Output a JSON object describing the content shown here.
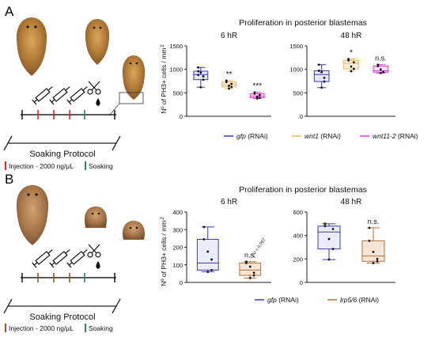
{
  "panels": [
    {
      "id": "A",
      "letter": "A",
      "title": "Proliferation in posterior blastemas",
      "ylabel": "Nº of PH3+ cells / mm",
      "ylabel_sup": "2",
      "protocol": {
        "label": "Soaking Protocol",
        "legend_injection": "Injection - 2000 ng/µL",
        "legend_soaking": "Soaking",
        "tick_colors": [
          "#222222",
          "#e8242c",
          "#e8242c",
          "#e8242c",
          "#2e8b57",
          "#222222"
        ]
      },
      "legend": [
        {
          "name_italic": "gfp",
          "suffix": " (RNAi)",
          "color": "#3a3ab8"
        },
        {
          "name_italic": "wnt1",
          "suffix": " (RNAi)",
          "color": "#f2b36b"
        },
        {
          "name_italic": "wnt11-2",
          "suffix": " (RNAi)",
          "color": "#e23ad6"
        }
      ],
      "chart_data": [
        {
          "type": "box",
          "title": "6 hR",
          "ylim": [
            0,
            1500
          ],
          "yticks": [
            "0",
            "500",
            "1000",
            "1500"
          ],
          "yticks_values": [
            0,
            500,
            1000,
            1500
          ],
          "groups": [
            {
              "color": "#3a3ab8",
              "fill": "#e7e7f7",
              "min": 620,
              "q1": 780,
              "median": 890,
              "q3": 960,
              "max": 1040,
              "points": [
                930,
                850,
                880
              ],
              "annotation": ""
            },
            {
              "color": "#f2b36b",
              "fill": "#fdf0de",
              "min": 590,
              "q1": 625,
              "median": 670,
              "q3": 730,
              "max": 760,
              "points": [
                650,
                690
              ],
              "annotation": "**"
            },
            {
              "color": "#e23ad6",
              "fill": "#fbe0f7",
              "min": 380,
              "q1": 395,
              "median": 430,
              "q3": 480,
              "max": 510,
              "points": [
                420,
                455
              ],
              "annotation": "***"
            }
          ]
        },
        {
          "type": "box",
          "title": "48 hR",
          "ylim": [
            0,
            1500
          ],
          "yticks": [
            "0",
            "500",
            "1000",
            "1500"
          ],
          "yticks_values": [
            0,
            500,
            1000,
            1500
          ],
          "groups": [
            {
              "color": "#3a3ab8",
              "fill": "#e7e7f7",
              "min": 610,
              "q1": 740,
              "median": 890,
              "q3": 970,
              "max": 1100,
              "points": [
                940,
                820
              ],
              "annotation": ""
            },
            {
              "color": "#f2b36b",
              "fill": "#fdf0de",
              "min": 960,
              "q1": 1010,
              "median": 1130,
              "q3": 1190,
              "max": 1220,
              "points": [
                1060,
                1150
              ],
              "annotation": "*"
            },
            {
              "color": "#e23ad6",
              "fill": "#fbe0f7",
              "min": 920,
              "q1": 940,
              "median": 970,
              "q3": 1070,
              "max": 1100,
              "points": [
                1000,
                950
              ],
              "annotation": "n.s."
            }
          ]
        }
      ]
    },
    {
      "id": "B",
      "letter": "B",
      "title": "Proliferation in posterior blastemas",
      "ylabel": "Nº of PH3+ cells / mm",
      "ylabel_sup": "2",
      "protocol": {
        "label": "Soaking Protocol",
        "legend_injection": "Injection - 2000 ng/µL",
        "legend_soaking": "Soaking",
        "tick_colors": [
          "#222222",
          "#8b5a2b",
          "#8b5a2b",
          "#8b5a2b",
          "#2e8b57",
          "#222222"
        ]
      },
      "legend": [
        {
          "name_italic": "gfp",
          "suffix": " (RNAi)",
          "color": "#3a3ab8"
        },
        {
          "name_italic": "lrp5/6",
          "suffix": " (RNAi)",
          "color": "#b5713a"
        }
      ],
      "chart_data": [
        {
          "type": "box",
          "title": "6 hR",
          "ylim": [
            0,
            400
          ],
          "yticks": [
            "0",
            "100",
            "200",
            "300",
            "400"
          ],
          "yticks_values": [
            0,
            100,
            200,
            300,
            400
          ],
          "groups": [
            {
              "color": "#3a3ab8",
              "fill": "#ececf8",
              "min": 60,
              "q1": 70,
              "median": 110,
              "q3": 245,
              "max": 315,
              "points": [
                175,
                130
              ],
              "annotation": ""
            },
            {
              "color": "#b5713a",
              "fill": "#f7e6d8",
              "min": 25,
              "q1": 40,
              "median": 70,
              "q3": 110,
              "max": 118,
              "points": [
                90,
                55
              ],
              "annotation": "n.s.",
              "pvalue": "pV = 0,097"
            }
          ]
        },
        {
          "type": "box",
          "title": "48 hR",
          "ylim": [
            0,
            600
          ],
          "yticks": [
            "0",
            "200",
            "400",
            "600"
          ],
          "yticks_values": [
            0,
            200,
            400,
            600
          ],
          "groups": [
            {
              "color": "#3a3ab8",
              "fill": "#ececf8",
              "min": 195,
              "q1": 285,
              "median": 430,
              "q3": 480,
              "max": 500,
              "points": [
                370,
                455
              ],
              "annotation": ""
            },
            {
              "color": "#b5713a",
              "fill": "#f7e6d8",
              "min": 165,
              "q1": 180,
              "median": 225,
              "q3": 355,
              "max": 465,
              "points": [
                260,
                200
              ],
              "annotation": "n.s."
            }
          ]
        }
      ]
    }
  ]
}
